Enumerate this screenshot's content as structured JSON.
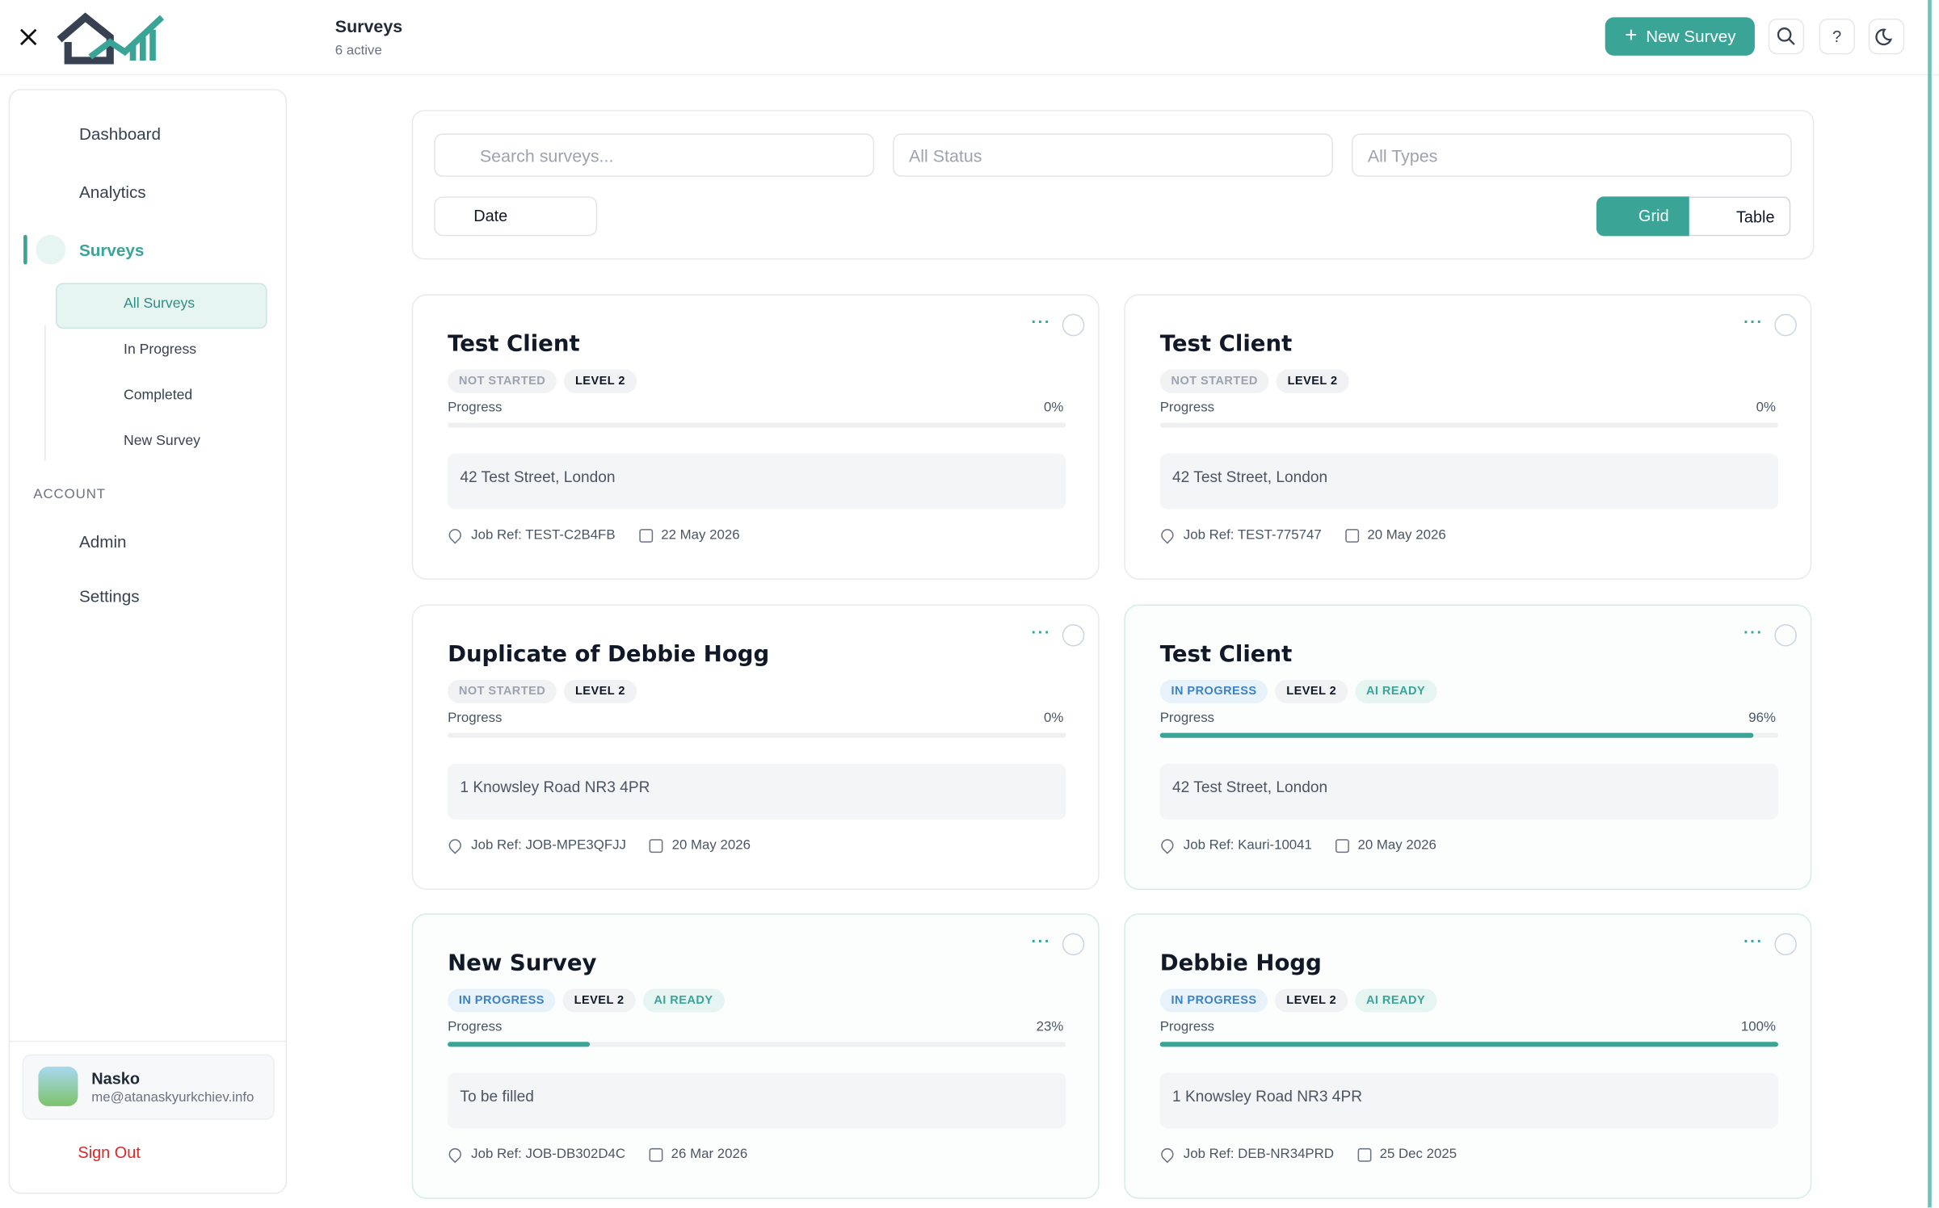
{
  "header": {
    "title": "Surveys",
    "subtitle": "6 active",
    "new_button": "New Survey"
  },
  "sidebar": {
    "nav": [
      "Dashboard",
      "Analytics",
      "Surveys"
    ],
    "sub": [
      "All Surveys",
      "In Progress",
      "Completed",
      "New Survey"
    ],
    "account_heading": "ACCOUNT",
    "account": [
      "Admin",
      "Settings"
    ],
    "user": {
      "name": "Nasko",
      "email": "me@atanaskyurkchiev.info"
    },
    "sign_out": "Sign Out"
  },
  "filters": {
    "search_placeholder": "Search surveys...",
    "status": "All Status",
    "types": "All Types",
    "sort": "Date",
    "views": [
      "Grid",
      "Table"
    ]
  },
  "progress_heading": "Progress",
  "cards": [
    {
      "title": "Test Client",
      "status": "NOT STARTED",
      "level": "LEVEL 2",
      "progress": 0,
      "progress_text": "0%",
      "address": "42 Test Street, London",
      "job_ref": "Job Ref: TEST-C2B4FB",
      "date": "22 May 2026"
    },
    {
      "title": "Test Client",
      "status": "NOT STARTED",
      "level": "LEVEL 2",
      "progress": 0,
      "progress_text": "0%",
      "address": "42 Test Street, London",
      "job_ref": "Job Ref: TEST-775747",
      "date": "20 May 2026"
    },
    {
      "title": "Duplicate of Debbie Hogg",
      "status": "NOT STARTED",
      "level": "LEVEL 2",
      "progress": 0,
      "progress_text": "0%",
      "address": "1 Knowsley Road NR3 4PR",
      "job_ref": "Job Ref: JOB-MPE3QFJJ",
      "date": "20 May 2026"
    },
    {
      "title": "Test Client",
      "status": "IN PROGRESS",
      "level": "LEVEL 2",
      "ai": "AI READY",
      "progress": 96,
      "progress_text": "96%",
      "address": "42 Test Street, London",
      "job_ref": "Job Ref: Kauri-10041",
      "date": "20 May 2026"
    },
    {
      "title": "New Survey",
      "status": "IN PROGRESS",
      "level": "LEVEL 2",
      "ai": "AI READY",
      "progress": 23,
      "progress_text": "23%",
      "address": "To be filled",
      "job_ref": "Job Ref: JOB-DB302D4C",
      "date": "26 Mar 2026"
    },
    {
      "title": "Debbie Hogg",
      "status": "IN PROGRESS",
      "level": "LEVEL 2",
      "ai": "AI READY",
      "progress": 100,
      "progress_text": "100%",
      "address": "1 Knowsley Road NR3 4PR",
      "job_ref": "Job Ref: DEB-NR34PRD",
      "date": "25 Dec 2025"
    }
  ]
}
